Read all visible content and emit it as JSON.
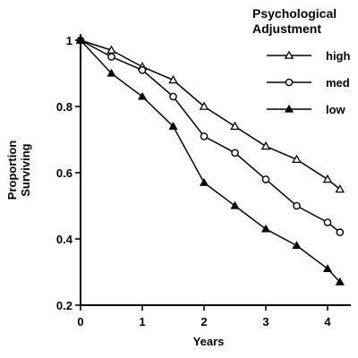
{
  "chart_data": {
    "type": "line",
    "xlabel": "Years",
    "ylabel": "Proportion Surviving",
    "ylabel_lines": [
      "Proportion",
      "Surviving"
    ],
    "xlim": [
      0,
      4.4
    ],
    "ylim": [
      0.2,
      1.0
    ],
    "x_ticks": [
      0,
      1,
      2,
      3,
      4
    ],
    "y_ticks": [
      0.2,
      0.4,
      0.6,
      0.8,
      1.0
    ],
    "x_tick_labels": [
      "0",
      "1",
      "2",
      "3",
      "4"
    ],
    "y_tick_labels": [
      "0.2",
      "0.4",
      "0.6",
      "0.8",
      "1"
    ],
    "grid": false,
    "legend": {
      "title_lines": [
        "Psychological",
        "Adjustment"
      ],
      "placement": "top-right"
    },
    "series": [
      {
        "name": "high",
        "marker": "open-triangle",
        "x": [
          0,
          0.5,
          1,
          1.5,
          2,
          2.5,
          3,
          3.5,
          4,
          4.2
        ],
        "y": [
          1.0,
          0.97,
          0.92,
          0.88,
          0.8,
          0.74,
          0.68,
          0.64,
          0.58,
          0.55
        ]
      },
      {
        "name": "med",
        "marker": "open-circle",
        "x": [
          0,
          0.5,
          1,
          1.5,
          2,
          2.5,
          3,
          3.5,
          4,
          4.2
        ],
        "y": [
          1.0,
          0.95,
          0.91,
          0.83,
          0.71,
          0.66,
          0.58,
          0.5,
          0.45,
          0.42
        ]
      },
      {
        "name": "low",
        "marker": "filled-triangle",
        "x": [
          0,
          0.5,
          1,
          1.5,
          2,
          2.5,
          3,
          3.5,
          4,
          4.2
        ],
        "y": [
          1.0,
          0.9,
          0.83,
          0.74,
          0.57,
          0.5,
          0.43,
          0.38,
          0.31,
          0.27
        ]
      }
    ]
  }
}
